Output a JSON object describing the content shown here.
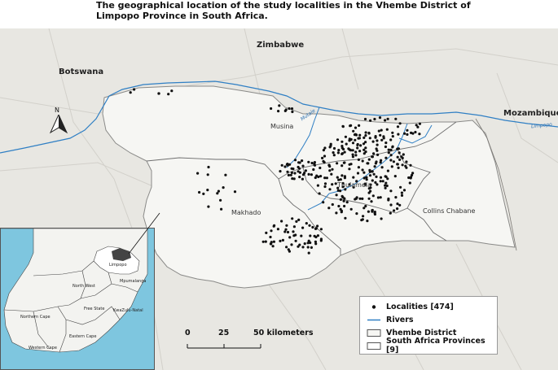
{
  "title": "The geographical location of the study localities in the Vhembe District of Limpopo Province in South Africa.",
  "countries": {
    "botswana": "Botswana",
    "zimbabwe": "Zimbabwe",
    "mozambique": "Mozambique"
  },
  "municipalities": {
    "musina": "Musina",
    "makhado": "Makhado",
    "thulamela": "Thulamela",
    "collins": "Collins Chabane"
  },
  "rivers": {
    "limpopo": "Limpopo",
    "mutale": "Mutale"
  },
  "north_arrow": "N",
  "legend": {
    "localities": "Localities [474]",
    "rivers": "Rivers",
    "vhembe": "Vhembe District",
    "provinces": "South Africa Provinces [9]"
  },
  "scalebar": {
    "t0": "0",
    "t25": "25",
    "t50": "50 kilometers"
  },
  "inset": {
    "limpopo": "Limpopo",
    "north_west": "North West",
    "mpumalanga": "Mpumalanga",
    "free_state": "Free State",
    "kzn": "KwaZulu-Natal",
    "northern_cape": "Northern Cape",
    "eastern_cape": "Eastern Cape",
    "western_cape": "Western Cape"
  },
  "colors": {
    "land": "#e9e8e4",
    "district": "#f6f6f3",
    "river": "#2f7fc4",
    "water": "#7ec6df",
    "dots": "#111111"
  }
}
